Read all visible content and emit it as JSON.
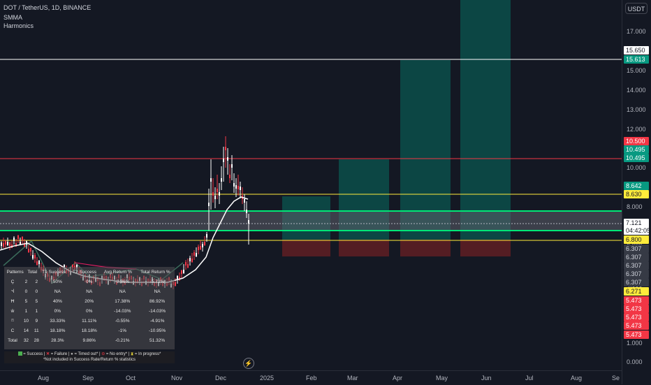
{
  "header": {
    "symbol_line": "DOT / TetherUS, 1D, BINANCE",
    "indicator1": "SMMA",
    "indicator2": "Harmonics"
  },
  "price_axis": {
    "currency_button": "USDT",
    "ticks": [
      "17.000",
      "16.000",
      "15.000",
      "14.000",
      "13.000",
      "12.000",
      "11.000",
      "10.000",
      "9.000",
      "8.000",
      "7.000",
      "6.000",
      "5.000",
      "4.000",
      "3.000",
      "2.000",
      "1.000",
      "0.000"
    ],
    "labels": [
      {
        "text": "15.650",
        "bg": "#ffffff",
        "fg": "#131722"
      },
      {
        "text": "15.613",
        "bg": "#089981",
        "fg": "#ffffff"
      },
      {
        "text": "10.500",
        "bg": "#f23645",
        "fg": "#ffffff"
      },
      {
        "text": "10.495",
        "bg": "#089981",
        "fg": "#ffffff"
      },
      {
        "text": "10.495",
        "bg": "#089981",
        "fg": "#ffffff"
      },
      {
        "text": "8.642",
        "bg": "#089981",
        "fg": "#ffffff"
      },
      {
        "text": "8.630",
        "bg": "#ffeb3b",
        "fg": "#131722"
      },
      {
        "text": "7.121",
        "bg": "#ffffff",
        "fg": "#131722"
      },
      {
        "text": "04:42:05",
        "bg": "#ffffff",
        "fg": "#131722"
      },
      {
        "text": "6.800",
        "bg": "#ffeb3b",
        "fg": "#131722"
      },
      {
        "text": "6.307",
        "bg": "#363a45",
        "fg": "#d1d4dc"
      },
      {
        "text": "6.307",
        "bg": "#363a45",
        "fg": "#d1d4dc"
      },
      {
        "text": "6.307",
        "bg": "#363a45",
        "fg": "#d1d4dc"
      },
      {
        "text": "6.307",
        "bg": "#363a45",
        "fg": "#d1d4dc"
      },
      {
        "text": "6.307",
        "bg": "#363a45",
        "fg": "#d1d4dc"
      },
      {
        "text": "6.271",
        "bg": "#ffeb3b",
        "fg": "#131722"
      },
      {
        "text": "5.473",
        "bg": "#f23645",
        "fg": "#ffffff"
      },
      {
        "text": "5.473",
        "bg": "#f23645",
        "fg": "#ffffff"
      },
      {
        "text": "5.473",
        "bg": "#f23645",
        "fg": "#ffffff"
      },
      {
        "text": "5.473",
        "bg": "#f23645",
        "fg": "#ffffff"
      },
      {
        "text": "5.473",
        "bg": "#f23645",
        "fg": "#ffffff"
      }
    ]
  },
  "time_axis": [
    "Aug",
    "Sep",
    "Oct",
    "Nov",
    "Dec",
    "2025",
    "Feb",
    "Mar",
    "Apr",
    "May",
    "Jun",
    "Jul",
    "Aug",
    "Se"
  ],
  "stats": {
    "headers": [
      "Patterns",
      "Total",
      "T1 Success",
      "T2 Success",
      "Avg Return %",
      "Total Return %"
    ],
    "rows": [
      {
        "pattern": "Ç",
        "cells": [
          "2",
          "2",
          "50%",
          "0%",
          "-2.86%",
          "-5.72%"
        ]
      },
      {
        "pattern": "Ⴣ",
        "cells": [
          "0",
          "0",
          "NA",
          "NA",
          "NA",
          "NA"
        ]
      },
      {
        "pattern": "Ħ",
        "cells": [
          "5",
          "5",
          "40%",
          "20%",
          "17.38%",
          "86.92%"
        ]
      },
      {
        "pattern": "ŵ",
        "cells": [
          "1",
          "1",
          "0%",
          "0%",
          "-14.03%",
          "-14.03%"
        ]
      },
      {
        "pattern": "ෆ",
        "cells": [
          "10",
          "9",
          "33.33%",
          "11.11%",
          "-0.55%",
          "-4.91%"
        ]
      },
      {
        "pattern": "C",
        "cells": [
          "14",
          "11",
          "18.18%",
          "18.18%",
          "-1%",
          "-10.95%"
        ]
      },
      {
        "pattern": "Total",
        "cells": [
          "32",
          "28",
          "28.3%",
          "9.86%",
          "-0.21%",
          "51.32%"
        ]
      }
    ]
  },
  "footer_legend": {
    "success": "= Success |",
    "failure": "= Failure |",
    "timed_out": "= Timed out* |",
    "no_entry": "= No entry* |",
    "in_progress": "= In progress*",
    "note": "*Not included in Success Rate/Return % statistics"
  },
  "colors": {
    "background": "#141823",
    "up": "#ffffff",
    "down": "#f23645",
    "target_zone": "#0b4f4a",
    "stop_zone": "#5b1e24",
    "green_line": "#00e676",
    "yellow_line": "#ffeb3b",
    "red_line": "#f23645"
  },
  "icons": {
    "alert": "lightning-icon"
  }
}
